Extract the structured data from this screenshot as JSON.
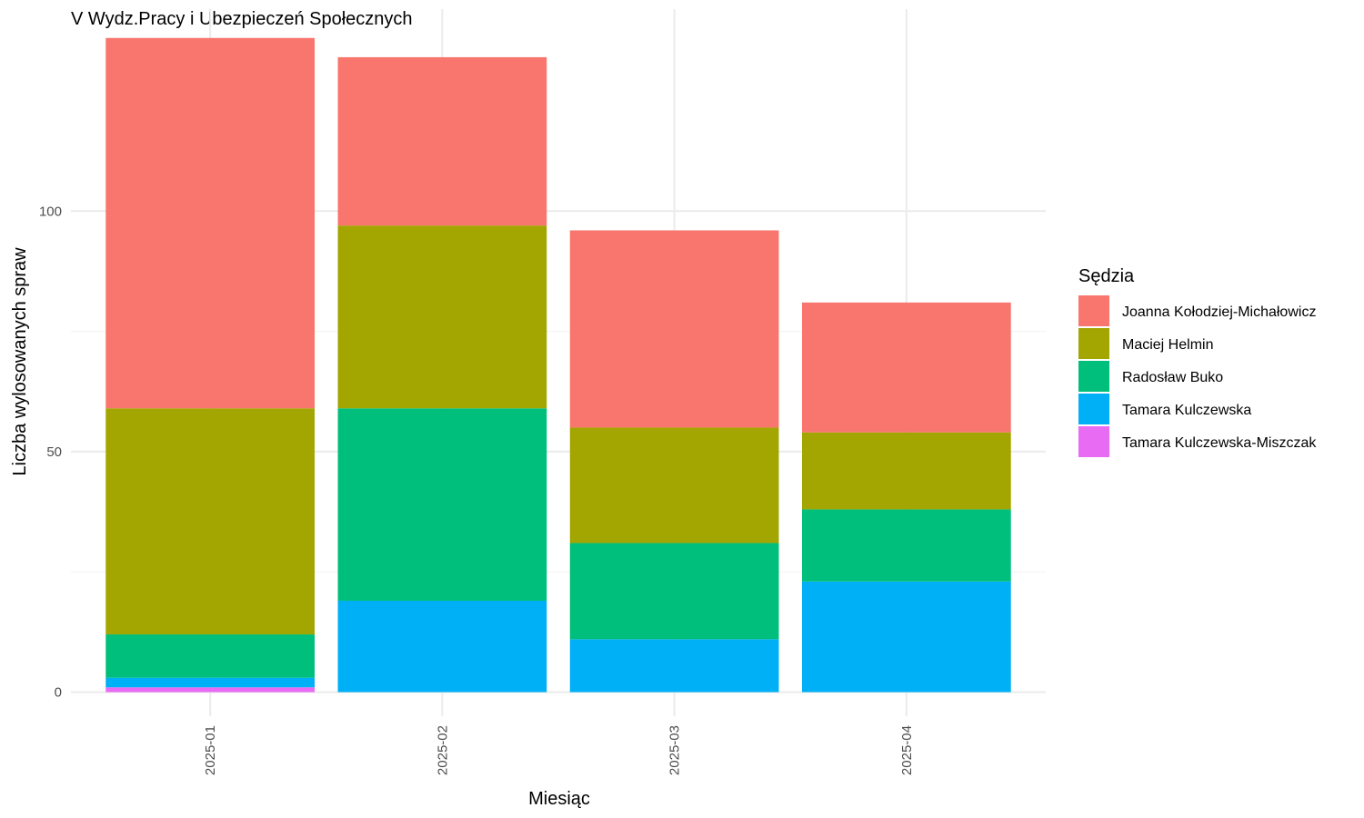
{
  "chart_data": {
    "type": "bar",
    "stacked": true,
    "title": "V Wydz.Pracy i Ubezpieczeń Społecznych",
    "xlabel": "Miesiąc",
    "ylabel": "Liczba wylosowanych spraw",
    "categories": [
      "2025-01",
      "2025-02",
      "2025-03",
      "2025-04"
    ],
    "yticks": [
      0,
      50,
      100
    ],
    "ylim": [
      -5,
      142
    ],
    "grid": true,
    "legend_title": "Sędzia",
    "legend_position": "right",
    "series": [
      {
        "name": "Joanna Kołodziej-Michałowicz",
        "color": "#F8766D",
        "values": [
          77,
          35,
          41,
          27
        ]
      },
      {
        "name": "Maciej Helmin",
        "color": "#A3A500",
        "values": [
          47,
          38,
          24,
          16
        ]
      },
      {
        "name": "Radosław Buko",
        "color": "#00BF7D",
        "values": [
          9,
          40,
          20,
          15
        ]
      },
      {
        "name": "Tamara Kulczewska",
        "color": "#00B0F6",
        "values": [
          2,
          19,
          11,
          23
        ]
      },
      {
        "name": "Tamara Kulczewska-Miszczak",
        "color": "#E76BF3",
        "values": [
          1,
          0,
          0,
          0
        ]
      }
    ]
  }
}
